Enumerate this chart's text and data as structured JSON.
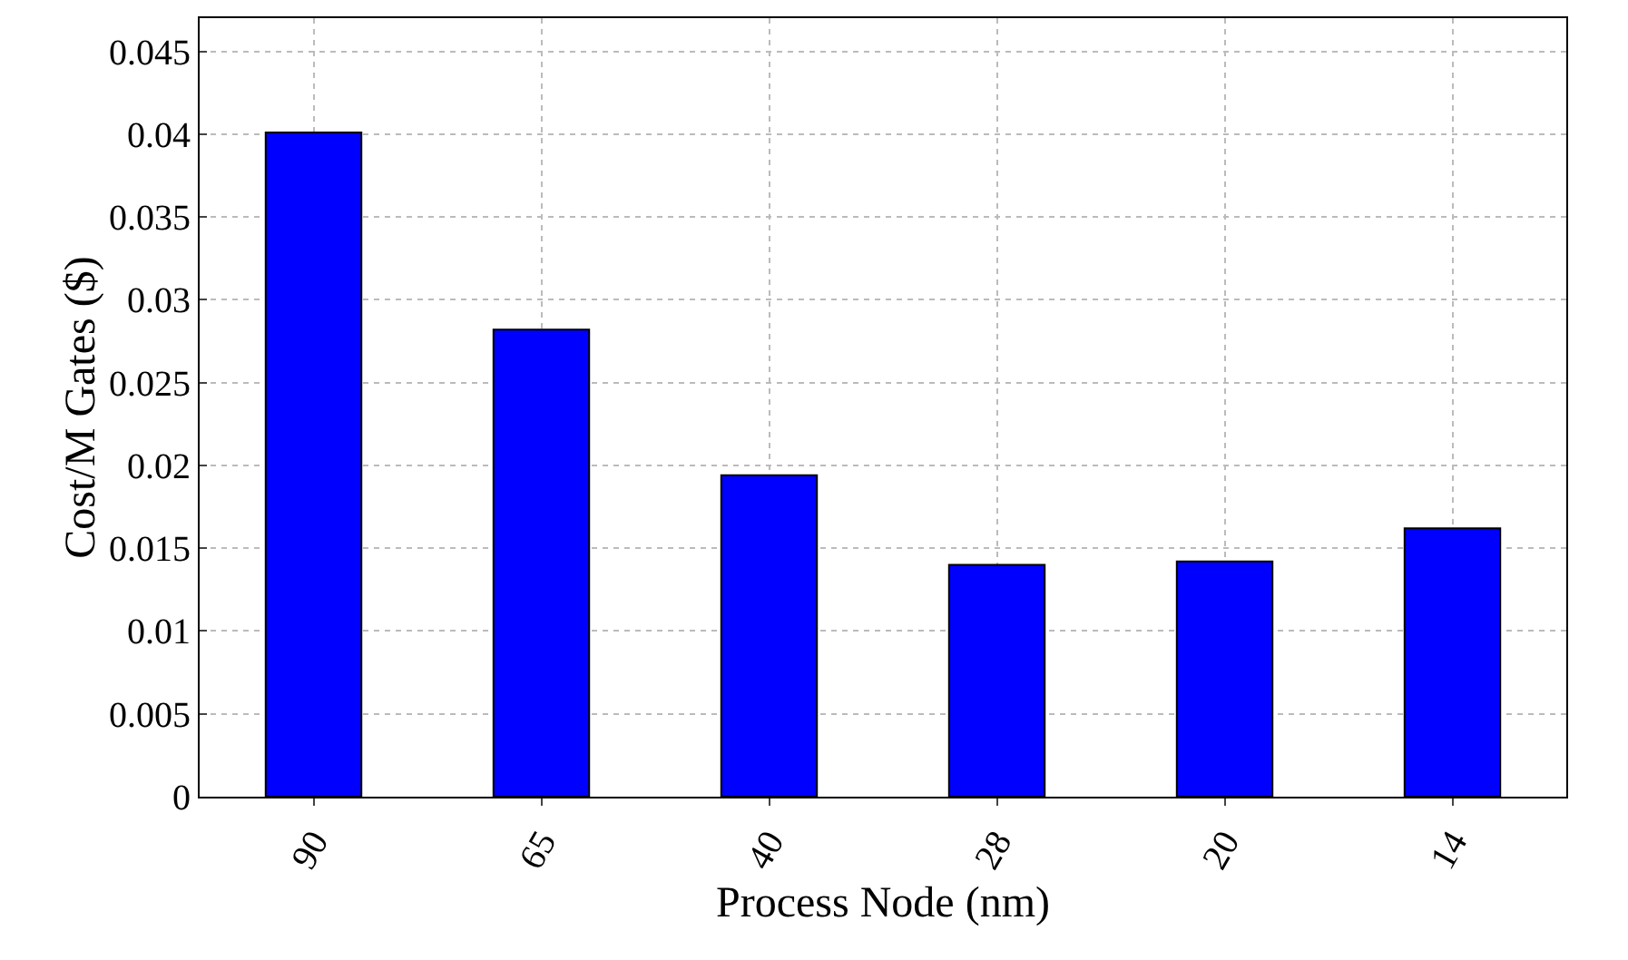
{
  "chart_data": {
    "type": "bar",
    "xlabel": "Process Node (nm)",
    "ylabel": "Cost/M Gates ($)",
    "categories": [
      "90",
      "65",
      "40",
      "28",
      "20",
      "14"
    ],
    "values": [
      0.0401,
      0.0282,
      0.0194,
      0.014,
      0.0142,
      0.0162
    ],
    "color": "#0000ff",
    "ylim": [
      0,
      0.047
    ],
    "yticks": [
      0,
      0.005,
      0.01,
      0.015,
      0.02,
      0.025,
      0.03,
      0.035,
      0.04,
      0.045
    ],
    "grid": true
  }
}
